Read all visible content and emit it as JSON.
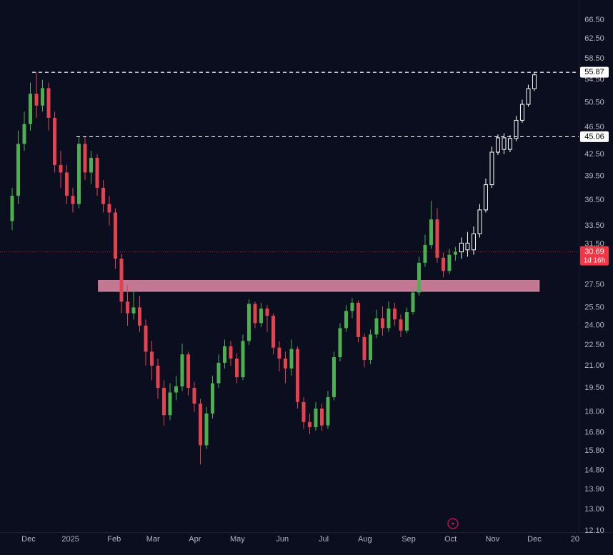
{
  "chart_data": {
    "type": "candlestick",
    "background": "#0a0e1e",
    "y_scale": "log",
    "ylim": [
      12.05,
      71.1
    ],
    "yticks": [
      {
        "value": 66.5,
        "label": "66.50"
      },
      {
        "value": 62.5,
        "label": "62.50"
      },
      {
        "value": 58.5,
        "label": "58.50"
      },
      {
        "value": 54.5,
        "label": "54.50"
      },
      {
        "value": 50.5,
        "label": "50.50"
      },
      {
        "value": 46.5,
        "label": "46.50"
      },
      {
        "value": 42.5,
        "label": "42.50"
      },
      {
        "value": 39.5,
        "label": "39.50"
      },
      {
        "value": 36.5,
        "label": "36.50"
      },
      {
        "value": 33.5,
        "label": "33.50"
      },
      {
        "value": 31.5,
        "label": "31.50"
      },
      {
        "value": 27.5,
        "label": "27.50"
      },
      {
        "value": 25.5,
        "label": "25.50"
      },
      {
        "value": 24,
        "label": "24.00"
      },
      {
        "value": 22.5,
        "label": "22.50"
      },
      {
        "value": 21,
        "label": "21.00"
      },
      {
        "value": 19.5,
        "label": "19.50"
      },
      {
        "value": 18,
        "label": "18.00"
      },
      {
        "value": 16.8,
        "label": "16.80"
      },
      {
        "value": 15.8,
        "label": "15.80"
      },
      {
        "value": 14.8,
        "label": "14.80"
      },
      {
        "value": 13.9,
        "label": "13.90"
      },
      {
        "value": 13,
        "label": "13.00"
      },
      {
        "value": 12.1,
        "label": "12.10"
      }
    ],
    "xlim": [
      -2,
      93.3
    ],
    "xticks": [
      {
        "value": 2.7,
        "label": "Dec"
      },
      {
        "value": 9.6,
        "label": "2025"
      },
      {
        "value": 16.8,
        "label": "Feb"
      },
      {
        "value": 23.2,
        "label": "Mar"
      },
      {
        "value": 30.1,
        "label": "Apr"
      },
      {
        "value": 37.1,
        "label": "May"
      },
      {
        "value": 44.5,
        "label": "Jun"
      },
      {
        "value": 51.3,
        "label": "Jul"
      },
      {
        "value": 58.1,
        "label": "Aug"
      },
      {
        "value": 65.3,
        "label": "Sep"
      },
      {
        "value": 72.2,
        "label": "Oct"
      },
      {
        "value": 79.1,
        "label": "Nov"
      },
      {
        "value": 86,
        "label": "Dec"
      },
      {
        "value": 92.7,
        "label": "20"
      }
    ],
    "series": [
      {
        "style": "filled",
        "color_up": "#4caf50",
        "color_down": "#e5424f",
        "x": [
          0,
          1,
          2,
          3,
          4,
          5,
          6,
          7,
          8,
          9,
          10,
          11,
          12,
          13,
          14,
          15,
          16,
          17,
          18,
          19,
          20,
          21,
          22,
          23,
          24,
          25,
          26,
          27,
          28,
          29,
          30,
          31,
          32,
          33,
          34,
          35,
          36,
          37,
          38,
          39,
          40,
          41,
          42,
          43,
          44,
          45,
          46,
          47,
          48,
          49,
          50,
          51,
          52,
          53,
          54,
          55,
          56,
          57,
          58,
          59,
          60,
          61,
          62,
          63,
          64,
          65,
          66,
          67,
          68,
          69,
          70,
          71,
          72,
          73
        ],
        "open": [
          34,
          37,
          44,
          47,
          52,
          50,
          53,
          48,
          41,
          40,
          37,
          36,
          44,
          40,
          42,
          38,
          36,
          35,
          30,
          26,
          25,
          25.5,
          24,
          22,
          21,
          19.5,
          17.8,
          19.2,
          19.6,
          21.8,
          19.5,
          18.5,
          16.1,
          17.9,
          19.8,
          21.2,
          22.4,
          21.5,
          20.2,
          22.8,
          25.8,
          24.2,
          25.4,
          24.8,
          22.3,
          21.5,
          20.8,
          22.2,
          18.6,
          17.4,
          17.1,
          18.2,
          17.2,
          18.9,
          21.6,
          23.8,
          25.2,
          25.9,
          23.1,
          21.4,
          23.3,
          24.6,
          23.8,
          25.4,
          24.5,
          23.6,
          25.1,
          26.8,
          29.6,
          31.4,
          34.2,
          30.1,
          28.8,
          30.4
        ],
        "high": [
          38,
          46,
          49,
          54,
          55.87,
          54.5,
          54,
          49,
          43,
          41,
          38,
          45,
          45,
          43,
          42.5,
          39,
          37,
          35.5,
          30.5,
          27.5,
          27,
          26.5,
          24.5,
          22.8,
          21.5,
          20,
          19.8,
          20.3,
          22.6,
          22,
          19.9,
          18.8,
          18.3,
          20.3,
          21.8,
          22.9,
          22.8,
          21.9,
          23.3,
          26.2,
          26,
          25.9,
          25.7,
          25,
          22.8,
          22,
          22.9,
          22.4,
          18.9,
          17.9,
          18.6,
          18.5,
          19.3,
          22,
          24.2,
          25.7,
          26.3,
          26.1,
          23.4,
          23.7,
          25.3,
          25.6,
          26,
          25.9,
          24.9,
          25.5,
          27.2,
          30.2,
          32.5,
          36.4,
          35.5,
          30.6,
          31,
          31.2
        ],
        "low": [
          33,
          36,
          43,
          46,
          48,
          49,
          46,
          40,
          38,
          36,
          35,
          35.5,
          39,
          38.5,
          37,
          35,
          33.5,
          29,
          25,
          24,
          24.5,
          23.5,
          21,
          20,
          18.8,
          17.2,
          17.5,
          18.7,
          19.3,
          19,
          18,
          15.1,
          15.9,
          17.6,
          19.5,
          20.8,
          21,
          19.8,
          20,
          22.5,
          23.8,
          23.9,
          23.5,
          21.8,
          20.6,
          19.8,
          20.3,
          18.2,
          17,
          16.7,
          16.9,
          16.9,
          17,
          18.7,
          21.3,
          23.5,
          24.6,
          22.7,
          20.9,
          21.1,
          23,
          23.2,
          23.5,
          24,
          23.1,
          23.4,
          24.9,
          26.5,
          29.2,
          31,
          29.6,
          28.2,
          28.5,
          29.8
        ],
        "close": [
          37,
          44,
          47,
          52,
          50,
          53,
          48,
          41,
          40,
          37,
          36,
          44,
          40,
          42,
          38,
          36,
          35,
          30,
          26,
          25,
          25.5,
          24,
          22,
          21,
          19.5,
          17.8,
          19.2,
          19.6,
          21.8,
          19.5,
          18.5,
          16.1,
          17.9,
          19.8,
          21.2,
          22.4,
          21.5,
          20.2,
          22.8,
          25.8,
          24.2,
          25.4,
          24.8,
          22.3,
          21.5,
          20.8,
          22.2,
          18.6,
          17.4,
          17.1,
          18.2,
          17.2,
          18.9,
          21.6,
          23.8,
          25.2,
          25.9,
          23.1,
          21.4,
          23.3,
          24.6,
          23.8,
          25.4,
          24.5,
          23.6,
          25.1,
          26.8,
          29.6,
          31.4,
          34.2,
          30.1,
          28.8,
          30.4,
          30.69
        ]
      },
      {
        "style": "outline",
        "color_up": "#ffffff",
        "color_down": "#ffffff",
        "x": [
          74,
          75,
          76,
          77,
          78,
          79,
          80,
          81,
          82,
          83,
          84,
          85,
          86
        ],
        "open": [
          30.69,
          31.6,
          30.9,
          32.6,
          35.3,
          38.4,
          42.8,
          44.9,
          43.2,
          44.8,
          47.6,
          50.2,
          52.9
        ],
        "high": [
          32.2,
          32.8,
          33.4,
          36,
          39.2,
          43.6,
          45.4,
          45.6,
          45.3,
          48.3,
          51,
          53.6,
          55.87
        ],
        "low": [
          30,
          30.2,
          30.4,
          32.2,
          35,
          38,
          42.4,
          42.5,
          42.8,
          44.4,
          47.2,
          49.8,
          52.5
        ],
        "close": [
          31.6,
          30.9,
          32.6,
          35.3,
          38.4,
          42.8,
          44.9,
          43.2,
          44.8,
          47.6,
          50.2,
          52.9,
          55.4
        ]
      }
    ],
    "levels": [
      55.87,
      45.06
    ],
    "zone": {
      "low": 26.9,
      "high": 27.9,
      "x": [
        14.2,
        86.8
      ],
      "color": "#e38aa8"
    },
    "last": {
      "value": 30.69,
      "countdown": "1d 16h",
      "color": "#f23645"
    }
  }
}
